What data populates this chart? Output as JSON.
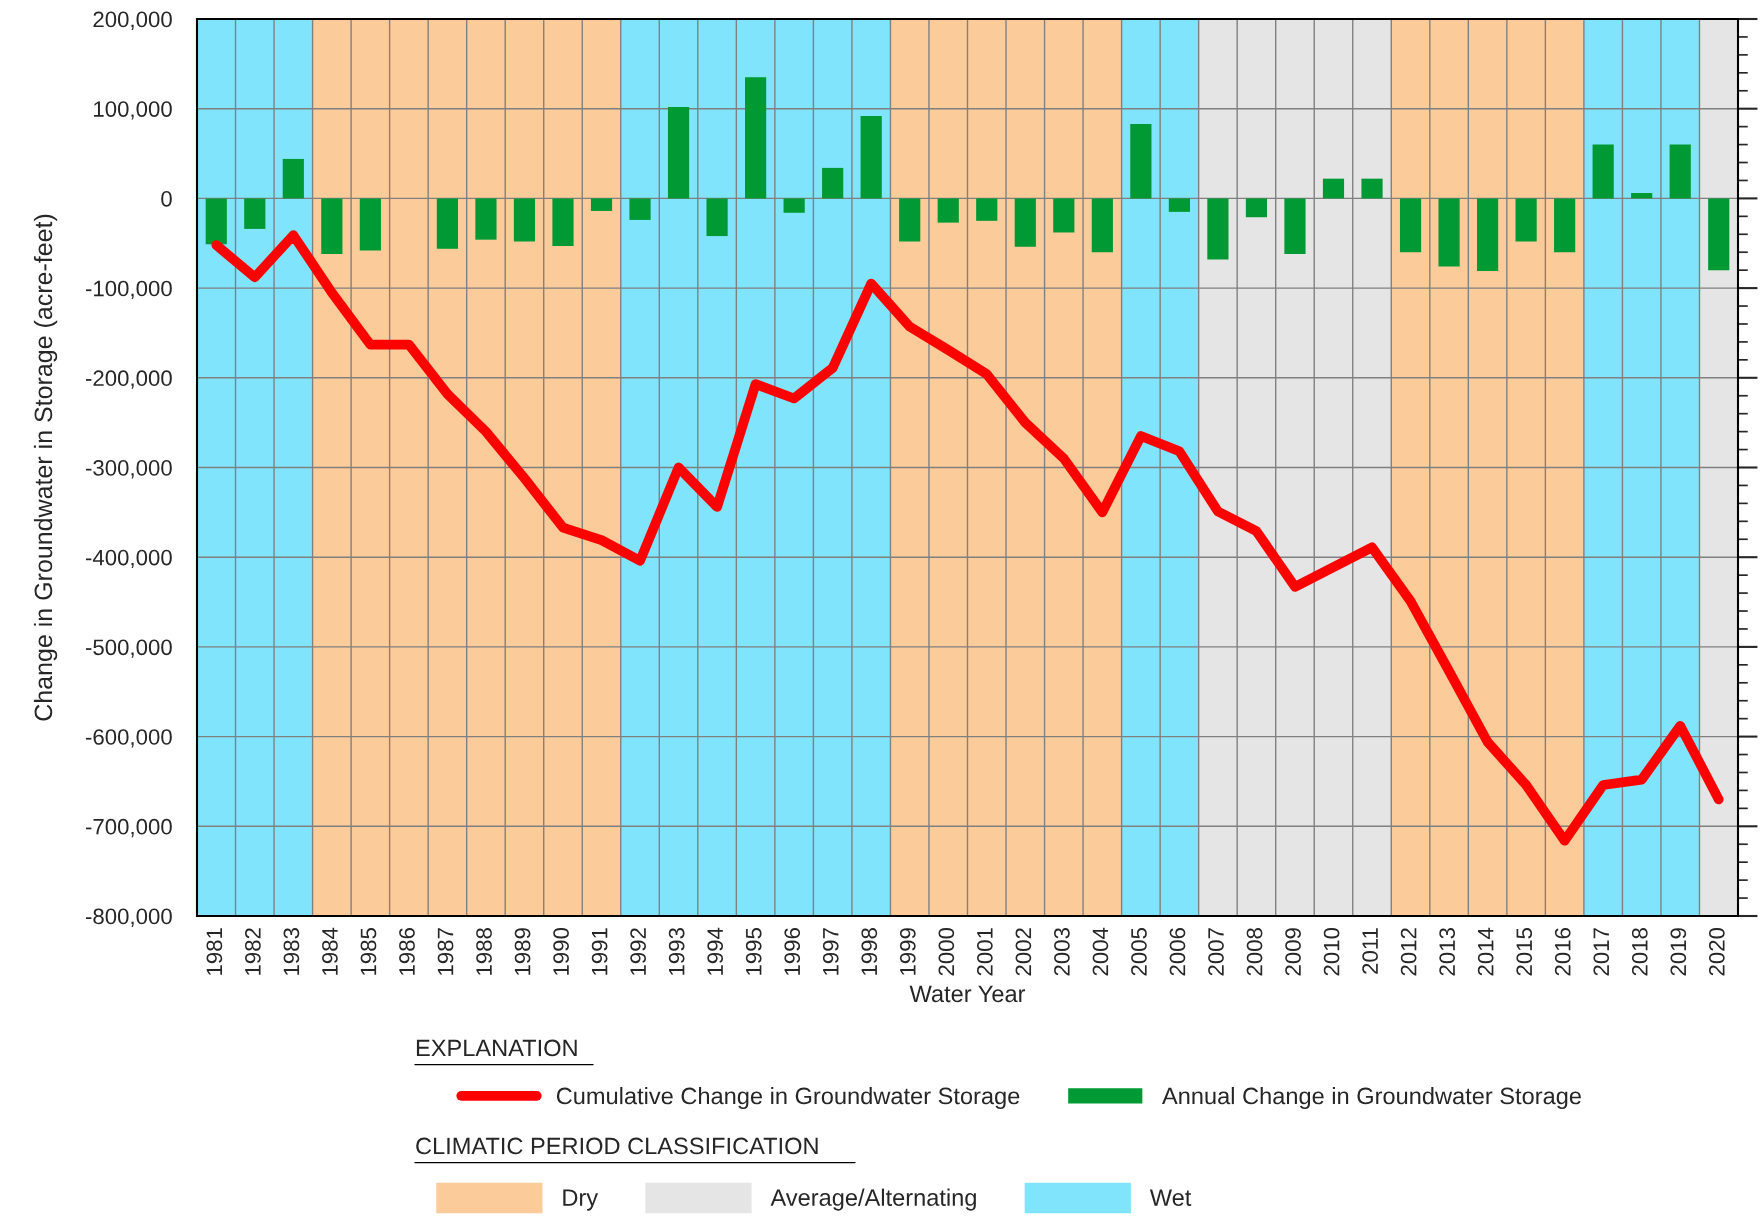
{
  "chart_data": {
    "type": "bar",
    "xlabel": "Water Year",
    "ylabel": "Change in Groundwater in Storage (acre-feet)",
    "categories": [
      "1981",
      "1982",
      "1983",
      "1984",
      "1985",
      "1986",
      "1987",
      "1988",
      "1989",
      "1990",
      "1991",
      "1992",
      "1993",
      "1994",
      "1995",
      "1996",
      "1997",
      "1998",
      "1999",
      "2000",
      "2001",
      "2002",
      "2003",
      "2004",
      "2005",
      "2006",
      "2007",
      "2008",
      "2009",
      "2010",
      "2011",
      "2012",
      "2013",
      "2014",
      "2015",
      "2016",
      "2017",
      "2018",
      "2019",
      "2020"
    ],
    "series": [
      {
        "name": "Annual Change in Groundwater Storage",
        "color": "#009933",
        "values": [
          -51000,
          -34000,
          44000,
          -62000,
          -58000,
          null,
          -56000,
          -46000,
          -48000,
          -53000,
          -14000,
          -24000,
          102000,
          -42000,
          135000,
          -16000,
          34000,
          92000,
          -48000,
          -27000,
          -25000,
          -54000,
          -38000,
          -60000,
          83000,
          -15000,
          -68000,
          -21000,
          -62000,
          22000,
          22000,
          -60000,
          -76000,
          -81000,
          -48000,
          -60000,
          60000,
          6000,
          60000,
          -80000
        ]
      },
      {
        "name": "Cumulative Change in Groundwater Storage",
        "type": "line",
        "color": "#ff0000",
        "values": [
          -52000,
          -88000,
          -41000,
          -105000,
          -163000,
          -163000,
          -218000,
          -260000,
          -312000,
          -367000,
          -381000,
          -404000,
          -300000,
          -344000,
          -207000,
          -223000,
          -189000,
          -95000,
          -143000,
          -169000,
          -196000,
          -250000,
          -290000,
          -350000,
          -265000,
          -282000,
          -349000,
          -371000,
          -433000,
          -411000,
          -389000,
          -449000,
          -527000,
          -606000,
          -654000,
          -716000,
          -654000,
          -648000,
          -588000,
          -670000
        ]
      }
    ],
    "ylim": [
      -800000,
      200000
    ],
    "yticks": [
      {
        "value": -800000,
        "label": "-800,000"
      },
      {
        "value": -700000,
        "label": "-700,000"
      },
      {
        "value": -600000,
        "label": "-600,000"
      },
      {
        "value": -500000,
        "label": "-500,000"
      },
      {
        "value": -400000,
        "label": "-400,000"
      },
      {
        "value": -300000,
        "label": "-300,000"
      },
      {
        "value": -200000,
        "label": "-200,000"
      },
      {
        "value": -100000,
        "label": "-100,000"
      },
      0,
      {
        "value": 100000,
        "label": "100,000"
      },
      {
        "value": 200000,
        "label": "200,000"
      }
    ],
    "bands": [
      {
        "axis": "x",
        "from": "1984",
        "to": "1991",
        "label": "Dry",
        "color": "#fccb9a"
      },
      {
        "axis": "x",
        "from": "1999",
        "to": "2004",
        "color": "#fccb9a"
      },
      {
        "axis": "x",
        "from": "2012",
        "to": "2016",
        "color": "#fccb9a"
      },
      {
        "axis": "x",
        "from": "2007",
        "to": "2011",
        "label": "Average/Alternating",
        "color": "#e5e5e5"
      },
      {
        "axis": "x",
        "from": "2020",
        "to": "2020",
        "color": "#e5e5e5"
      },
      {
        "axis": "x",
        "from": "1981",
        "to": "1983",
        "label": "Wet",
        "color": "#80e4fc"
      },
      {
        "axis": "x",
        "from": "1992",
        "to": "1998",
        "color": "#80e4fc"
      },
      {
        "axis": "x",
        "from": "2005",
        "to": "2006",
        "color": "#80e4fc"
      },
      {
        "axis": "x",
        "from": "2017",
        "to": "2019",
        "color": "#80e4fc"
      }
    ],
    "annotations": [
      "EXPLANATION",
      "CLIMATIC PERIOD CLASSIFICATION"
    ],
    "grid": true,
    "legend": "bottom"
  }
}
